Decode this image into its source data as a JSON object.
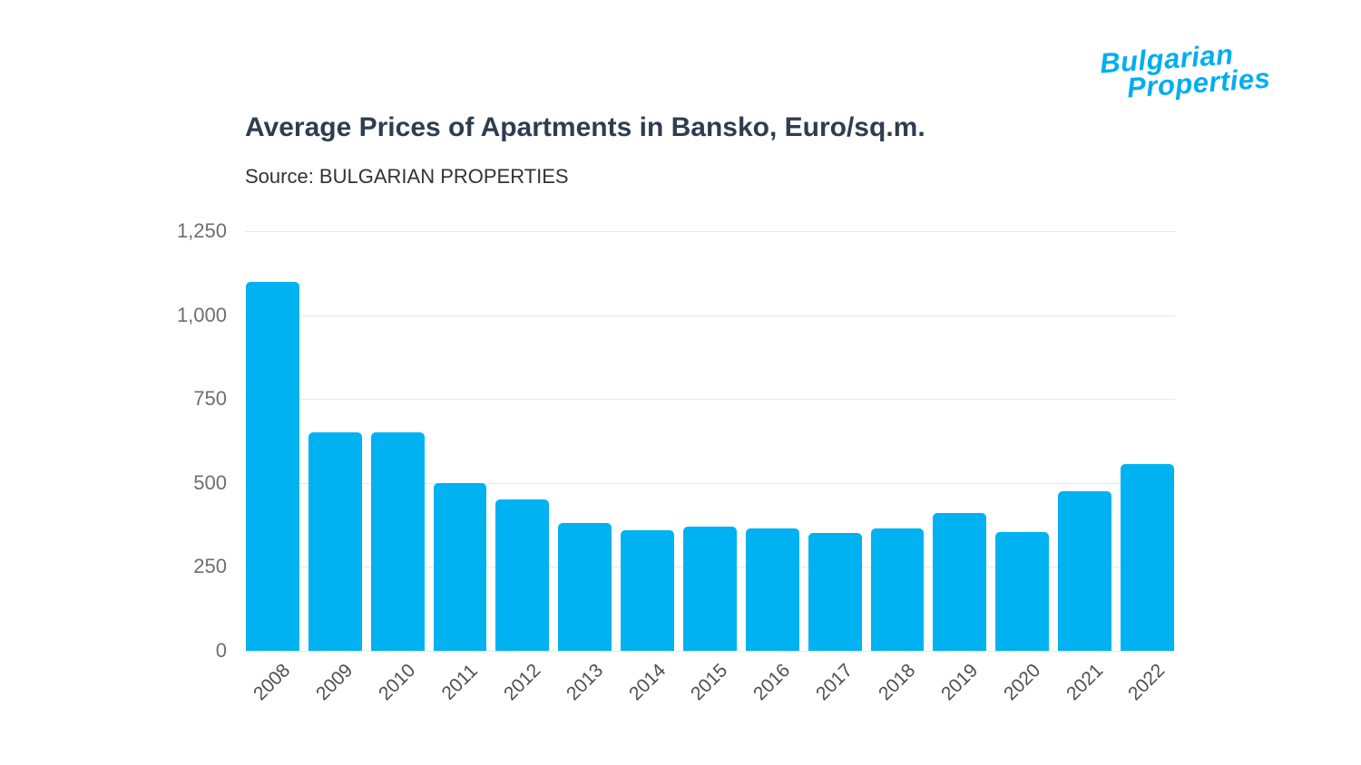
{
  "logo": {
    "line1": "Bulgarian",
    "line2": "Properties",
    "color": "#00aeef"
  },
  "header": {
    "title": "Average Prices of Apartments in Bansko, Euro/sq.m.",
    "source": "Source: BULGARIAN PROPERTIES"
  },
  "chart_data": {
    "type": "bar",
    "title": "Average Prices of Apartments in Bansko, Euro/sq.m.",
    "xlabel": "",
    "ylabel": "",
    "categories": [
      "2008",
      "2009",
      "2010",
      "2011",
      "2012",
      "2013",
      "2014",
      "2015",
      "2016",
      "2017",
      "2018",
      "2019",
      "2020",
      "2021",
      "2022"
    ],
    "values": [
      1100,
      650,
      650,
      500,
      450,
      380,
      360,
      370,
      365,
      350,
      365,
      410,
      355,
      475,
      555
    ],
    "ylim": [
      0,
      1250
    ],
    "yticks": [
      0,
      250,
      500,
      750,
      1000,
      1250
    ],
    "ytick_labels": [
      "0",
      "250",
      "500",
      "750",
      "1,000",
      "1,250"
    ],
    "bar_color": "#00b2f1",
    "grid": true,
    "legend_position": "none"
  }
}
